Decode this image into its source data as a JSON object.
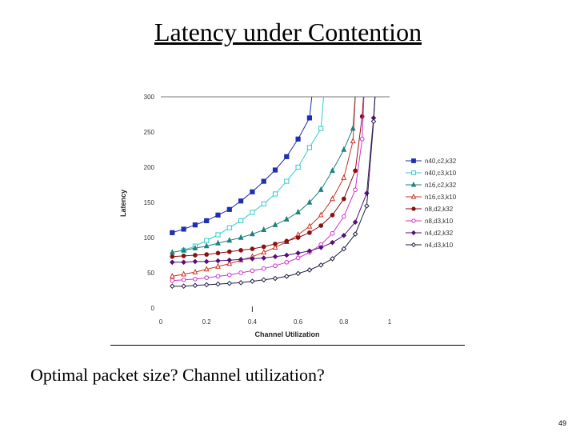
{
  "slide": {
    "title": "Latency under Contention",
    "caption": "Optimal packet size?  Channel utilization?",
    "page_number": "49"
  },
  "chart_data": {
    "type": "line",
    "title": "",
    "xlabel": "Channel Utilization",
    "ylabel": "Latency",
    "xlim": [
      0,
      1
    ],
    "ylim": [
      0,
      300
    ],
    "x_ticks": [
      "0",
      "0.2",
      "0.4",
      "0.6",
      "0.8",
      "1"
    ],
    "y_ticks": [
      "0",
      "50",
      "100",
      "150",
      "200",
      "250",
      "300"
    ],
    "legend_position": "right",
    "grid": false,
    "series": [
      {
        "name": "n40,c2,k32",
        "color": "#1f2fb0",
        "marker": "square-filled",
        "x": [
          0.05,
          0.1,
          0.15,
          0.2,
          0.25,
          0.3,
          0.35,
          0.4,
          0.45,
          0.5,
          0.55,
          0.6,
          0.65
        ],
        "y": [
          107,
          112,
          118,
          124,
          132,
          140,
          152,
          165,
          180,
          196,
          215,
          240,
          270
        ]
      },
      {
        "name": "n40,c3,k10",
        "color": "#33cccc",
        "marker": "square-open",
        "x": [
          0.1,
          0.15,
          0.2,
          0.25,
          0.3,
          0.35,
          0.4,
          0.45,
          0.5,
          0.55,
          0.6,
          0.65,
          0.7
        ],
        "y": [
          82,
          88,
          96,
          104,
          114,
          124,
          136,
          148,
          162,
          180,
          200,
          228,
          255
        ]
      },
      {
        "name": "n16,c2,k32",
        "color": "#1f8080",
        "marker": "triangle-filled",
        "x": [
          0.05,
          0.1,
          0.15,
          0.2,
          0.25,
          0.3,
          0.35,
          0.4,
          0.45,
          0.5,
          0.55,
          0.6,
          0.65,
          0.7,
          0.75,
          0.8,
          0.84
        ],
        "y": [
          79,
          82,
          85,
          88,
          92,
          96,
          100,
          105,
          111,
          118,
          126,
          136,
          150,
          168,
          195,
          225,
          255
        ]
      },
      {
        "name": "n16,c3,k10",
        "color": "#cc3322",
        "marker": "triangle-open",
        "x": [
          0.05,
          0.1,
          0.15,
          0.2,
          0.25,
          0.3,
          0.35,
          0.4,
          0.45,
          0.5,
          0.55,
          0.6,
          0.65,
          0.7,
          0.75,
          0.8,
          0.84
        ],
        "y": [
          45,
          48,
          51,
          55,
          59,
          63,
          68,
          73,
          79,
          86,
          94,
          104,
          116,
          132,
          155,
          185,
          237
        ]
      },
      {
        "name": "n8,d2,k32",
        "color": "#881111",
        "marker": "circle-filled",
        "x": [
          0.05,
          0.1,
          0.15,
          0.2,
          0.25,
          0.3,
          0.35,
          0.4,
          0.45,
          0.5,
          0.55,
          0.6,
          0.65,
          0.7,
          0.75,
          0.8,
          0.85,
          0.88
        ],
        "y": [
          73,
          74,
          75,
          76,
          78,
          80,
          82,
          84,
          87,
          91,
          95,
          100,
          107,
          117,
          132,
          155,
          195,
          272
        ]
      },
      {
        "name": "n8,d3,k10",
        "color": "#cc33cc",
        "marker": "circle-open",
        "x": [
          0.05,
          0.1,
          0.15,
          0.2,
          0.25,
          0.3,
          0.35,
          0.4,
          0.45,
          0.5,
          0.55,
          0.6,
          0.65,
          0.7,
          0.75,
          0.8,
          0.85,
          0.88
        ],
        "y": [
          39,
          40,
          41,
          43,
          45,
          47,
          50,
          53,
          56,
          60,
          65,
          71,
          79,
          90,
          106,
          130,
          168,
          240
        ]
      },
      {
        "name": "n4,d2,k32",
        "color": "#551177",
        "marker": "diamond-filled",
        "x": [
          0.05,
          0.1,
          0.15,
          0.2,
          0.25,
          0.3,
          0.35,
          0.4,
          0.45,
          0.5,
          0.55,
          0.6,
          0.65,
          0.7,
          0.75,
          0.8,
          0.85,
          0.9,
          0.93
        ],
        "y": [
          65,
          65,
          66,
          66,
          67,
          68,
          69,
          70,
          71,
          73,
          75,
          78,
          81,
          86,
          93,
          103,
          122,
          163,
          270
        ]
      },
      {
        "name": "n4,d3,k10",
        "color": "#222244",
        "marker": "diamond-open",
        "x": [
          0.05,
          0.1,
          0.15,
          0.2,
          0.25,
          0.3,
          0.35,
          0.4,
          0.45,
          0.5,
          0.55,
          0.6,
          0.65,
          0.7,
          0.75,
          0.8,
          0.85,
          0.9,
          0.93
        ],
        "y": [
          31,
          31,
          32,
          33,
          34,
          35,
          36,
          38,
          40,
          42,
          45,
          49,
          54,
          61,
          70,
          84,
          105,
          145,
          265
        ]
      }
    ]
  }
}
